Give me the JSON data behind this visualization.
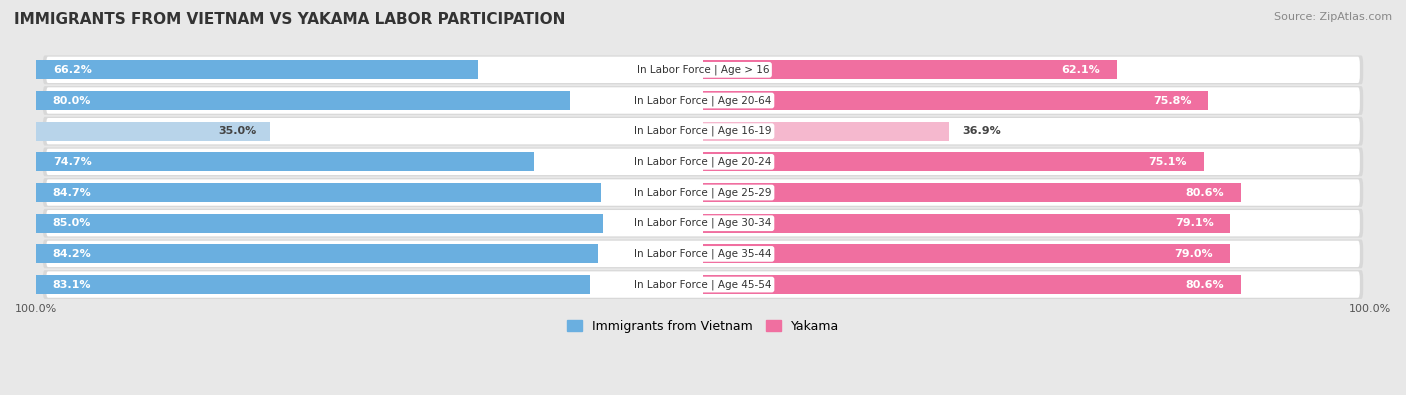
{
  "title": "IMMIGRANTS FROM VIETNAM VS YAKAMA LABOR PARTICIPATION",
  "source": "Source: ZipAtlas.com",
  "categories": [
    "In Labor Force | Age > 16",
    "In Labor Force | Age 20-64",
    "In Labor Force | Age 16-19",
    "In Labor Force | Age 20-24",
    "In Labor Force | Age 25-29",
    "In Labor Force | Age 30-34",
    "In Labor Force | Age 35-44",
    "In Labor Force | Age 45-54"
  ],
  "vietnam_values": [
    66.2,
    80.0,
    35.0,
    74.7,
    84.7,
    85.0,
    84.2,
    83.1
  ],
  "yakama_values": [
    62.1,
    75.8,
    36.9,
    75.1,
    80.6,
    79.1,
    79.0,
    80.6
  ],
  "vietnam_color_strong": "#6aafe0",
  "vietnam_color_light": "#b8d4ea",
  "yakama_color_strong": "#f06fa0",
  "yakama_color_light": "#f5b8ce",
  "bg_color": "#e8e8e8",
  "row_bg": "#f2f2f2",
  "row_border": "#d8d8d8",
  "legend_vietnam": "Immigrants from Vietnam",
  "legend_yakama": "Yakama",
  "threshold": 60.0,
  "bar_height": 0.62
}
